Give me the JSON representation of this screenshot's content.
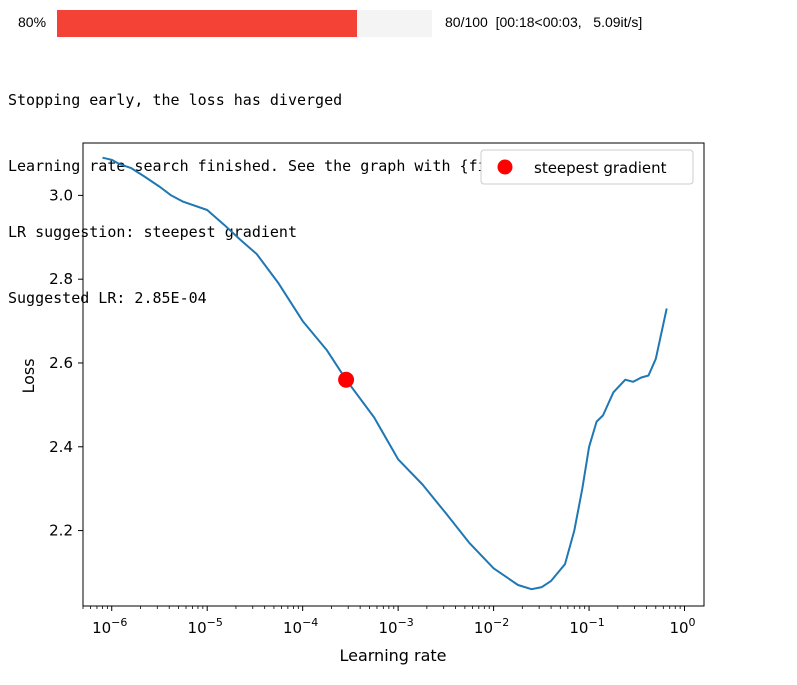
{
  "progress": {
    "percent_label": "80%",
    "fraction": 0.8,
    "stats": "80/100  [00:18<00:03,   5.09it/s]",
    "bar_color": "#f44336"
  },
  "output_lines": [
    "Stopping early, the loss has diverged",
    "Learning rate search finished. See the graph with {finder_name}.plot()",
    "LR suggestion: steepest gradient",
    "Suggested LR: 2.85E-04"
  ],
  "chart_data": {
    "type": "line",
    "xlabel": "Learning rate",
    "ylabel": "Loss",
    "xscale": "log",
    "xlim": [
      5e-07,
      1.6
    ],
    "ylim": [
      2.02,
      3.125
    ],
    "x_tick_labels": [
      {
        "base": "10",
        "exp": "−6",
        "value": 1e-06
      },
      {
        "base": "10",
        "exp": "−5",
        "value": 1e-05
      },
      {
        "base": "10",
        "exp": "−4",
        "value": 0.0001
      },
      {
        "base": "10",
        "exp": "−3",
        "value": 0.001
      },
      {
        "base": "10",
        "exp": "−2",
        "value": 0.01
      },
      {
        "base": "10",
        "exp": "−1",
        "value": 0.1
      },
      {
        "base": "10",
        "exp": "0",
        "value": 1
      }
    ],
    "y_ticks": [
      2.2,
      2.4,
      2.6,
      2.8,
      3.0
    ],
    "y_tick_labels": [
      "2.2",
      "2.4",
      "2.6",
      "2.8",
      "3.0"
    ],
    "grid": false,
    "legend_position": "top-right",
    "line_color": "#1f77b4",
    "marker_color": "#ff0000",
    "series": [
      {
        "x": [
          8e-07,
          1e-06,
          1.2e-06,
          1.6e-06,
          2.2e-06,
          3.2e-06,
          4.2e-06,
          5.6e-06,
          1e-05,
          1.5e-05,
          2.2e-05,
          3.3e-05,
          5.6e-05,
          0.0001,
          0.00018,
          0.000285,
          0.00056,
          0.001,
          0.0018,
          0.0032,
          0.0056,
          0.01,
          0.018,
          0.025,
          0.032,
          0.04,
          0.056,
          0.07,
          0.085,
          0.1,
          0.12,
          0.14,
          0.18,
          0.24,
          0.29,
          0.35,
          0.42,
          0.5,
          0.65
        ],
        "y": [
          3.09,
          3.085,
          3.075,
          3.065,
          3.045,
          3.02,
          3.0,
          2.985,
          2.965,
          2.93,
          2.895,
          2.86,
          2.79,
          2.7,
          2.63,
          2.56,
          2.47,
          2.37,
          2.31,
          2.24,
          2.17,
          2.11,
          2.07,
          2.06,
          2.065,
          2.08,
          2.12,
          2.2,
          2.3,
          2.4,
          2.46,
          2.475,
          2.53,
          2.56,
          2.555,
          2.565,
          2.57,
          2.61,
          2.73
        ]
      }
    ],
    "marker": {
      "x": 0.000285,
      "y": 2.56,
      "label": "steepest gradient"
    }
  }
}
